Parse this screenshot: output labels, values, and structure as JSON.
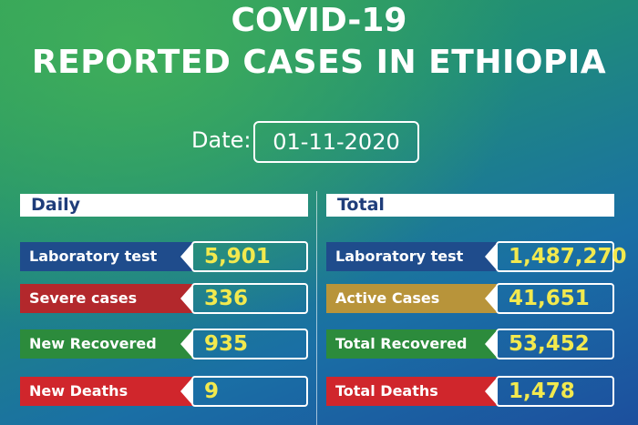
{
  "header": {
    "title_line1": "COVID-19",
    "title_line2": "REPORTED CASES IN ETHIOPIA",
    "date_label": "Date:",
    "date": "01-11-2020"
  },
  "panels": [
    {
      "title": "Daily",
      "rows": [
        {
          "label": "Laboratory test",
          "value": "5,901"
        },
        {
          "label": "Severe cases",
          "value": "336"
        },
        {
          "label": "New Recovered",
          "value": "935"
        },
        {
          "label": "New Deaths",
          "value": "9"
        }
      ]
    },
    {
      "title": "Total",
      "rows": [
        {
          "label": "Laboratory test",
          "value": "1,487,270"
        },
        {
          "label": "Active Cases",
          "value": "41,651"
        },
        {
          "label": "Total Recovered",
          "value": "53,452"
        },
        {
          "label": "Total Deaths",
          "value": "1,478"
        }
      ]
    }
  ]
}
